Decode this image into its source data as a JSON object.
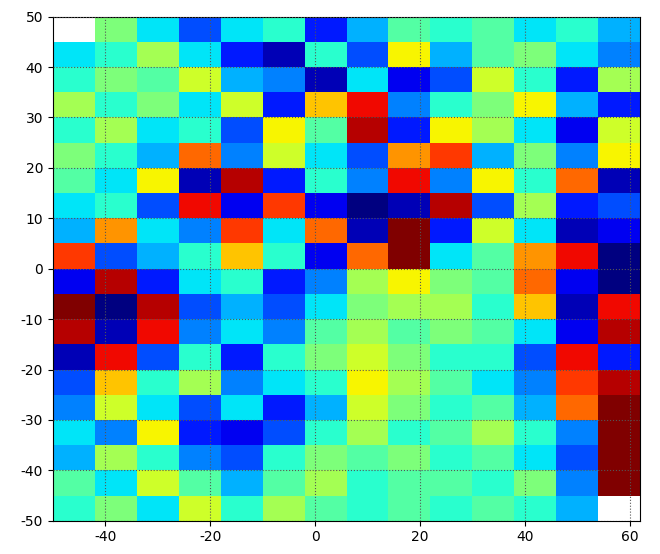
{
  "chart_data": {
    "type": "heatmap",
    "xlim": [
      -50,
      62
    ],
    "ylim": [
      -50,
      50
    ],
    "xticks": [
      -40,
      -20,
      0,
      20,
      40,
      60
    ],
    "yticks": [
      -50,
      -40,
      -30,
      -20,
      -10,
      0,
      10,
      20,
      30,
      40,
      50
    ],
    "grid": true,
    "x_edges": [
      -50,
      -42,
      -34,
      -26,
      -18,
      -10,
      -2,
      6,
      14,
      22,
      30,
      38,
      46,
      54,
      62
    ],
    "y_edges": [
      -50,
      -45,
      -40,
      -35,
      -30,
      -25,
      -20,
      -15,
      -10,
      -5,
      0,
      5,
      10,
      15,
      20,
      25,
      30,
      35,
      40,
      45,
      50
    ],
    "zlim": [
      -1,
      1
    ],
    "cells": [
      [
        -0.2,
        0.0,
        -0.3,
        0.2,
        -0.2,
        0.1,
        -0.1,
        -0.2,
        -0.1,
        -0.2,
        -0.1,
        -0.2,
        -0.4,
        null
      ],
      [
        -0.1,
        -0.3,
        0.2,
        -0.1,
        -0.4,
        -0.1,
        0.1,
        -0.2,
        -0.1,
        -0.1,
        -0.2,
        0.0,
        -0.5,
        1.0
      ],
      [
        -0.4,
        0.1,
        -0.2,
        -0.5,
        -0.6,
        -0.2,
        0.0,
        -0.1,
        0.0,
        -0.2,
        -0.1,
        -0.3,
        -0.6,
        1.0
      ],
      [
        -0.3,
        -0.5,
        0.3,
        -0.7,
        -0.8,
        -0.6,
        -0.2,
        0.1,
        -0.2,
        -0.1,
        0.1,
        -0.2,
        -0.5,
        1.0
      ],
      [
        -0.5,
        0.2,
        -0.3,
        -0.6,
        -0.3,
        -0.7,
        -0.4,
        0.2,
        0.0,
        -0.2,
        -0.1,
        -0.4,
        0.6,
        1.0
      ],
      [
        -0.6,
        0.4,
        -0.2,
        0.1,
        -0.5,
        -0.3,
        -0.2,
        0.3,
        0.1,
        -0.1,
        -0.3,
        -0.5,
        0.7,
        0.9
      ],
      [
        -0.9,
        0.8,
        -0.6,
        -0.2,
        -0.7,
        -0.2,
        0.0,
        0.2,
        0.0,
        -0.2,
        -0.2,
        -0.6,
        0.8,
        -0.7
      ],
      [
        0.9,
        -0.9,
        0.8,
        -0.5,
        -0.3,
        -0.5,
        -0.1,
        0.1,
        -0.1,
        0.0,
        -0.1,
        -0.3,
        -0.8,
        0.9
      ],
      [
        1.0,
        -1.0,
        0.9,
        -0.6,
        -0.4,
        -0.6,
        -0.3,
        0.0,
        0.1,
        0.1,
        -0.2,
        0.4,
        -0.9,
        0.8
      ],
      [
        -0.8,
        0.9,
        -0.7,
        -0.3,
        -0.2,
        -0.7,
        -0.5,
        0.1,
        0.3,
        0.0,
        -0.1,
        0.6,
        -0.8,
        -1.0
      ],
      [
        0.7,
        -0.6,
        -0.4,
        -0.2,
        0.4,
        -0.2,
        -0.8,
        0.6,
        1.0,
        -0.3,
        -0.1,
        0.5,
        0.8,
        -1.0
      ],
      [
        -0.4,
        0.5,
        -0.3,
        -0.5,
        0.7,
        -0.3,
        0.6,
        -0.9,
        1.0,
        -0.7,
        0.2,
        -0.3,
        -0.9,
        -0.8
      ],
      [
        -0.3,
        -0.2,
        -0.6,
        0.8,
        -0.8,
        0.7,
        -0.8,
        -1.0,
        -0.9,
        0.9,
        -0.6,
        0.1,
        -0.7,
        -0.6
      ],
      [
        -0.1,
        -0.3,
        0.3,
        -0.9,
        0.9,
        -0.7,
        -0.2,
        -0.5,
        0.8,
        -0.5,
        0.3,
        -0.2,
        0.6,
        -0.9
      ],
      [
        0.0,
        -0.2,
        -0.4,
        0.6,
        -0.5,
        0.2,
        -0.3,
        -0.6,
        0.5,
        0.7,
        -0.4,
        0.0,
        -0.5,
        0.3
      ],
      [
        -0.2,
        0.1,
        -0.3,
        -0.2,
        -0.6,
        0.3,
        -0.1,
        0.9,
        -0.7,
        0.3,
        0.1,
        -0.3,
        -0.8,
        0.2
      ],
      [
        0.1,
        -0.2,
        0.0,
        -0.3,
        0.2,
        -0.7,
        0.4,
        0.8,
        -0.5,
        -0.2,
        0.0,
        0.3,
        -0.4,
        -0.7
      ],
      [
        -0.2,
        0.0,
        -0.1,
        0.2,
        -0.4,
        -0.5,
        -0.9,
        -0.3,
        -0.8,
        -0.6,
        0.2,
        -0.2,
        -0.7,
        0.1
      ],
      [
        -0.3,
        -0.2,
        0.1,
        -0.3,
        -0.7,
        -0.9,
        -0.2,
        -0.6,
        0.3,
        -0.4,
        -0.1,
        0.0,
        -0.3,
        -0.5
      ],
      [
        null,
        0.0,
        -0.3,
        -0.6,
        -0.3,
        -0.2,
        -0.7,
        -0.4,
        -0.1,
        -0.2,
        -0.1,
        -0.3,
        -0.2,
        -0.4
      ]
    ]
  }
}
